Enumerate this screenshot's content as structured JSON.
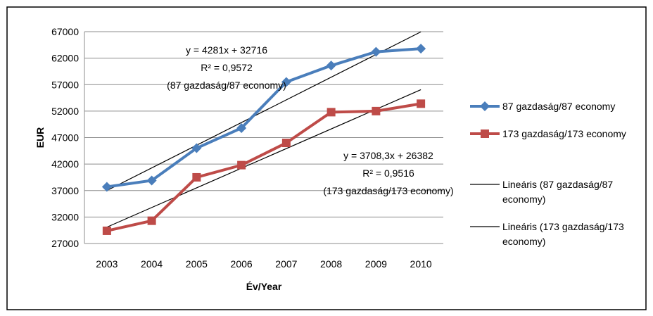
{
  "chart_data": {
    "type": "line",
    "categories": [
      "2003",
      "2004",
      "2005",
      "2006",
      "2007",
      "2008",
      "2009",
      "2010"
    ],
    "series": [
      {
        "name": "87 gazdaság/87 economy",
        "values": [
          37700,
          38900,
          45000,
          48800,
          57500,
          60600,
          63200,
          63800
        ],
        "color": "#4a7ebb",
        "marker": "diamond"
      },
      {
        "name": "173 gazdaság/173 economy",
        "values": [
          29400,
          31300,
          39500,
          41800,
          46000,
          51800,
          52000,
          53400
        ],
        "color": "#be4b48",
        "marker": "square"
      }
    ],
    "trendlines": [
      {
        "name_lines": [
          "Lineáris (87 gazdaság/87",
          "economy)"
        ],
        "slope": 4281,
        "intercept": 32716,
        "color": "#000000",
        "equation": "y = 4281x + 32716",
        "r2": "R² = 0,9572",
        "series_label": "(87 gazdaság/87 economy)"
      },
      {
        "name_lines": [
          "Lineáris (173 gazdaság/173",
          "economy)"
        ],
        "slope": 3708.3,
        "intercept": 26382,
        "color": "#000000",
        "equation": "y = 3708,3x + 26382",
        "r2": "R² = 0,9516",
        "series_label": "(173 gazdaság/173 economy)"
      }
    ],
    "yticks": [
      "67000",
      "62000",
      "57000",
      "52000",
      "47000",
      "42000",
      "37000",
      "32000",
      "27000"
    ],
    "ylim": [
      27000,
      67000
    ],
    "xlabel": "Év/Year",
    "ylabel": "EUR",
    "grid": true,
    "legend_position": "right"
  }
}
